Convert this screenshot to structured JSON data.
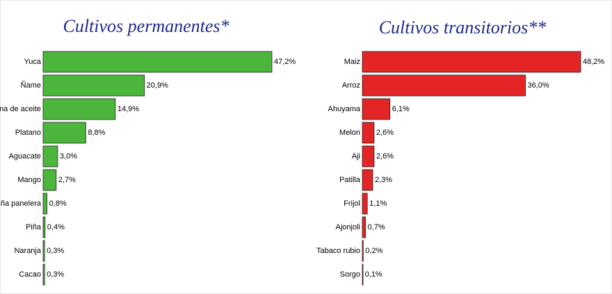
{
  "chart_data": [
    {
      "type": "bar",
      "orientation": "horizontal",
      "title": "Cultivos permanentes*",
      "categories": [
        "Yuca",
        "Ñame",
        "na de aceite",
        "Platano",
        "Aguacate",
        "Mango",
        "ña panelera",
        "Piña",
        "Naranja",
        "Cacao"
      ],
      "values": [
        47.2,
        20.9,
        14.9,
        8.8,
        3.0,
        2.7,
        0.8,
        0.4,
        0.3,
        0.3
      ],
      "value_labels": [
        "47,2%",
        "20,9%",
        "14,9%",
        "8,8%",
        "3,0%",
        "2,7%",
        "0,8%",
        "0,4%",
        "0,3%",
        "0,3%"
      ],
      "color": "#4cb63c"
    },
    {
      "type": "bar",
      "orientation": "horizontal",
      "title": "Cultivos transitorios**",
      "categories": [
        "Maiz",
        "Arroz",
        "Ahuyama",
        "Melon",
        "Aji",
        "Patilla",
        "Frijol",
        "Ajonjoli",
        "Tabaco rubio",
        "Sorgo"
      ],
      "values": [
        48.2,
        36.0,
        6.1,
        2.6,
        2.6,
        2.3,
        1.1,
        0.7,
        0.2,
        0.1
      ],
      "value_labels": [
        "48,2%",
        "36,0%",
        "6,1%",
        "2,6%",
        "2,6%",
        "2,3%",
        "1,1%",
        "0,7%",
        "0,2%",
        "0,1%"
      ],
      "color": "#e32526"
    }
  ]
}
